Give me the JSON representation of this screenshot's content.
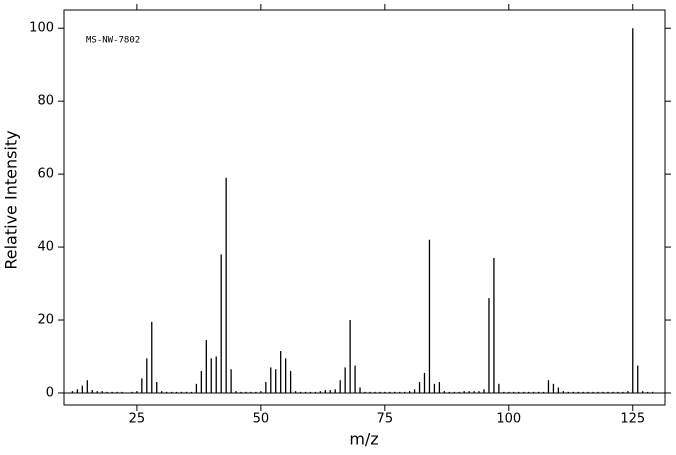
{
  "chart_data": {
    "type": "stem",
    "annotation": "MS-NW-7802",
    "xlabel": "m/z",
    "ylabel": "Relative Intensity",
    "x": [
      12,
      13,
      14,
      15,
      16,
      17,
      18,
      19,
      20,
      21,
      22,
      24,
      25,
      26,
      27,
      28,
      29,
      30,
      31,
      32,
      33,
      34,
      35,
      36,
      37,
      38,
      39,
      40,
      41,
      42,
      43,
      44,
      45,
      46,
      47,
      48,
      49,
      50,
      51,
      52,
      53,
      54,
      55,
      56,
      57,
      58,
      59,
      60,
      61,
      62,
      63,
      64,
      65,
      66,
      67,
      68,
      69,
      70,
      71,
      72,
      73,
      74,
      75,
      76,
      77,
      78,
      79,
      80,
      81,
      82,
      83,
      84,
      85,
      86,
      87,
      88,
      89,
      90,
      91,
      92,
      93,
      94,
      95,
      96,
      97,
      98,
      99,
      100,
      101,
      102,
      103,
      104,
      105,
      106,
      107,
      108,
      109,
      110,
      111,
      112,
      113,
      114,
      115,
      116,
      117,
      118,
      119,
      120,
      121,
      122,
      123,
      124,
      125,
      126,
      127,
      128,
      129
    ],
    "values": [
      0.5,
      1,
      2,
      3.5,
      0.8,
      0.5,
      0.5,
      0.3,
      0.3,
      0.3,
      0.3,
      0.3,
      0.5,
      4,
      9.5,
      19.5,
      3,
      0.5,
      0.3,
      0.3,
      0.3,
      0.3,
      0.3,
      0.3,
      2.5,
      6,
      14.5,
      9.5,
      10,
      38,
      59,
      6.5,
      0.5,
      0.3,
      0.3,
      0.3,
      0.3,
      0.5,
      3,
      7,
      6.5,
      11.5,
      9.5,
      6,
      0.5,
      0.3,
      0.3,
      0.3,
      0.3,
      0.5,
      0.8,
      0.8,
      1,
      3.5,
      7,
      20,
      7.5,
      1.5,
      0.3,
      0.3,
      0.3,
      0.3,
      0.3,
      0.3,
      0.3,
      0.3,
      0.3,
      0.5,
      1,
      3,
      5.5,
      42,
      2.5,
      3,
      0.5,
      0.3,
      0.3,
      0.3,
      0.5,
      0.5,
      0.5,
      0.5,
      1,
      26,
      37,
      2.5,
      0.3,
      0.3,
      0.3,
      0.3,
      0.3,
      0.3,
      0.3,
      0.3,
      0.3,
      3.5,
      2.5,
      1.5,
      0.5,
      0.3,
      0.3,
      0.3,
      0.3,
      0.3,
      0.3,
      0.3,
      0.3,
      0.3,
      0.3,
      0.3,
      0.3,
      0.5,
      100,
      7.5,
      0.5,
      0.3,
      0.3
    ],
    "color": "#000000",
    "xlim": [
      10.3,
      131.5
    ],
    "ylim": [
      -3.3,
      105
    ],
    "xticks": [
      25,
      50,
      75,
      100,
      125
    ],
    "yticks": [
      0,
      20,
      40,
      60,
      80,
      100
    ]
  }
}
